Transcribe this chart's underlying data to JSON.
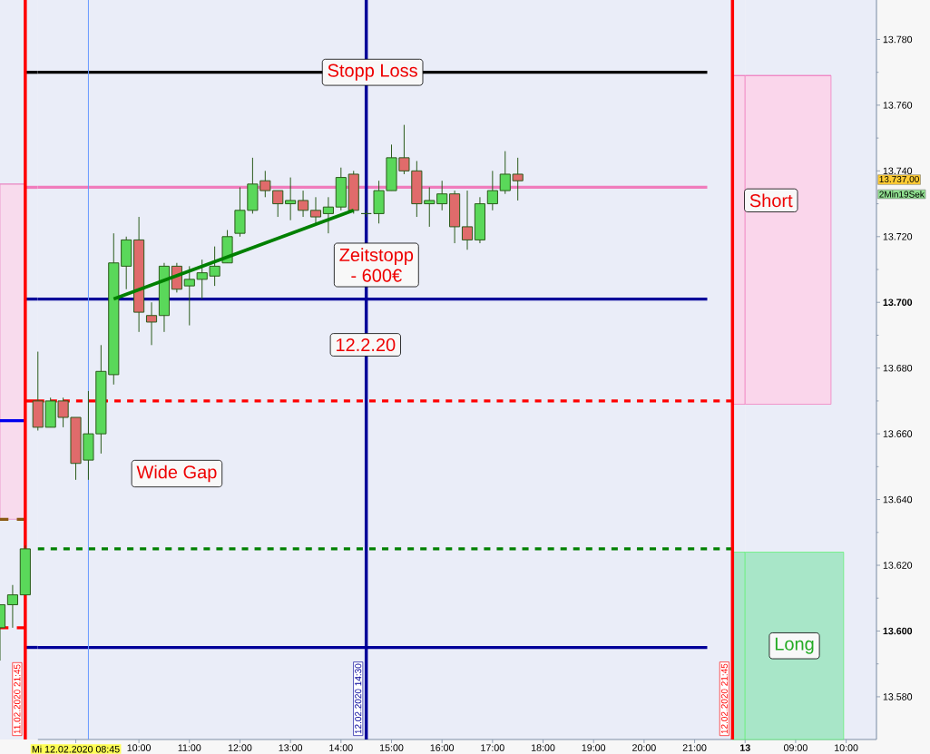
{
  "chart_data": [
    {
      "type": "candlestick",
      "categories": [
        null,
        null,
        null,
        null
      ],
      "ohlc": [
        [
          13601,
          13608,
          13591,
          13608
        ],
        [
          13608,
          13614,
          13601,
          13611
        ],
        [
          13611,
          13626,
          13611,
          13625
        ],
        null
      ],
      "color": "#2a5a1a",
      "colors": [
        "#5ad85a",
        "#5ad85a",
        "#5ad85a",
        null
      ],
      "ylim": [
        13567,
        13792
      ],
      "tick_labels": false,
      "series": [
        {
          "type": "line",
          "color": "#e890c8",
          "values": [
            13736,
            13736,
            13736,
            null
          ],
          "lower": [
            13634,
            13634,
            13634,
            null
          ],
          "upper": [
            13736,
            13736,
            13736,
            null
          ]
        },
        {
          "type": "line",
          "color": "#0000ee",
          "values": [
            13664,
            13664,
            13664,
            null
          ]
        },
        {
          "type": "line",
          "color": "#8b5a14",
          "line_style": "dashed",
          "values": [
            13634,
            13634,
            13634,
            null
          ]
        },
        {
          "type": "line",
          "color": "#ff0000",
          "line_style": "dashed",
          "values": [
            13601,
            13601,
            13601,
            null
          ]
        },
        {
          "type": "line",
          "color": "#000000",
          "values": [
            null,
            null,
            13770,
            13770
          ]
        },
        {
          "type": "line",
          "color": "#f07cbc",
          "values": [
            null,
            null,
            13735,
            13735
          ]
        },
        {
          "type": "line",
          "color": "#000099",
          "values": [
            null,
            null,
            13701,
            13701
          ]
        },
        {
          "type": "line",
          "color": "#ff0000",
          "line_style": "dashed",
          "values": [
            null,
            null,
            13670,
            13670
          ]
        },
        {
          "type": "line",
          "color": "#000099",
          "values": [
            null,
            null,
            13595,
            13595
          ]
        }
      ],
      "annotations": [
        "11.02.2020 21:45"
      ]
    },
    {
      "type": "candlestick",
      "x": [
        "2020-02-12T08:00",
        "2020-02-12T08:15",
        "2020-02-12T08:30",
        "2020-02-12T08:45",
        "2020-02-12T09:00",
        "2020-02-12T09:15",
        "2020-02-12T09:30",
        "2020-02-12T09:45",
        "2020-02-12T10:00",
        "2020-02-12T10:15",
        "2020-02-12T10:30",
        "2020-02-12T10:45",
        "2020-02-12T11:00",
        "2020-02-12T11:15",
        "2020-02-12T11:30",
        "2020-02-12T11:45",
        "2020-02-12T12:00",
        "2020-02-12T12:15",
        "2020-02-12T12:30",
        "2020-02-12T12:45",
        "2020-02-12T13:00",
        "2020-02-12T13:15",
        "2020-02-12T13:30",
        "2020-02-12T13:45",
        "2020-02-12T14:00",
        "2020-02-12T14:15",
        "2020-02-12T14:30",
        "2020-02-12T14:45",
        "2020-02-12T15:00",
        "2020-02-12T15:15",
        "2020-02-12T15:30",
        "2020-02-12T15:45",
        "2020-02-12T16:00",
        "2020-02-12T16:15",
        "2020-02-12T16:30",
        "2020-02-12T16:45",
        "2020-02-12T17:00",
        "2020-02-12T17:15",
        "2020-02-12T17:30"
      ],
      "ohlc": [
        [
          13670,
          13685,
          13661,
          13662
        ],
        [
          13662,
          13671,
          13662,
          13670
        ],
        [
          13670,
          13671,
          13662,
          13665
        ],
        [
          13665,
          13665,
          13646,
          13651
        ],
        [
          13652,
          13673,
          13646,
          13660
        ],
        [
          13660,
          13687,
          13654,
          13679
        ],
        [
          13678,
          13721,
          13675,
          13712
        ],
        [
          13711,
          13720,
          13704,
          13719
        ],
        [
          13719,
          13726,
          13691,
          13697
        ],
        [
          13696,
          13700,
          13687,
          13694
        ],
        [
          13696,
          13712,
          13691,
          13711
        ],
        [
          13711,
          13712,
          13703,
          13704
        ],
        [
          13705,
          13711,
          13693,
          13707
        ],
        [
          13707,
          13713,
          13701,
          13709
        ],
        [
          13708,
          13717,
          13705,
          13711
        ],
        [
          13712,
          13722,
          13712,
          13720
        ],
        [
          13721,
          13735,
          13720,
          13728
        ],
        [
          13728,
          13744,
          13727,
          13736
        ],
        [
          13737,
          13740,
          13732,
          13734
        ],
        [
          13734,
          13734,
          13726,
          13730
        ],
        [
          13730,
          13738,
          13725,
          13731
        ],
        [
          13731,
          13734,
          13726,
          13728
        ],
        [
          13728,
          13732,
          13724,
          13726
        ],
        [
          13727,
          13732,
          13721,
          13729
        ],
        [
          13729,
          13741,
          13728,
          13738
        ],
        [
          13739,
          13740,
          13727,
          13728
        ],
        [
          13727,
          13728,
          13726,
          13727
        ],
        [
          13727,
          13737,
          13724,
          13734
        ],
        [
          13734,
          13748,
          13734,
          13744
        ],
        [
          13744,
          13754,
          13739,
          13740
        ],
        [
          13740,
          13743,
          13726,
          13730
        ],
        [
          13730,
          13735,
          13723,
          13731
        ],
        [
          13730,
          13737,
          13728,
          13733
        ],
        [
          13733,
          13734,
          13718,
          13723
        ],
        [
          13723,
          13734,
          13716,
          13719
        ],
        [
          13719,
          13732,
          13718,
          13730
        ],
        [
          13730,
          13740,
          13728,
          13734
        ],
        [
          13734,
          13746,
          13733,
          13739
        ],
        [
          13739,
          13744,
          13731,
          13737
        ]
      ],
      "color": "#2a5a1a",
      "colors": [
        "#e06b6b",
        "#5ad85a",
        "#e06b6b",
        "#e06b6b",
        "#5ad85a",
        "#5ad85a",
        "#5ad85a",
        "#5ad85a",
        "#e06b6b",
        "#e06b6b",
        "#5ad85a",
        "#e06b6b",
        "#5ad85a",
        "#5ad85a",
        "#5ad85a",
        "#5ad85a",
        "#5ad85a",
        "#5ad85a",
        "#e06b6b",
        "#e06b6b",
        "#5ad85a",
        "#e06b6b",
        "#e06b6b",
        "#5ad85a",
        "#5ad85a",
        "#e06b6b",
        "#2a5a1a",
        "#5ad85a",
        "#5ad85a",
        "#e06b6b",
        "#e06b6b",
        "#5ad85a",
        "#5ad85a",
        "#e06b6b",
        "#e06b6b",
        "#5ad85a",
        "#5ad85a",
        "#5ad85a",
        "#e06b6b"
      ],
      "xlim": [
        "2020-02-12T08:00",
        "2020-02-12T22:00"
      ],
      "ylim": [
        13567,
        13792
      ],
      "tick_labels": "x",
      "xticks": [
        {
          "value": "2020-02-12T08:45",
          "label": "Mi 12.02.2020 08:45"
        },
        {
          "value": "2020-02-12T10:00",
          "label": "10:00"
        },
        {
          "value": "2020-02-12T11:00",
          "label": "11:00"
        },
        {
          "value": "2020-02-12T12:00",
          "label": "12:00"
        },
        {
          "value": "2020-02-12T13:00",
          "label": "13:00"
        },
        {
          "value": "2020-02-12T14:00",
          "label": "14:00"
        },
        {
          "value": "2020-02-12T15:00",
          "label": "15:00"
        },
        {
          "value": "2020-02-12T16:00",
          "label": "16:00"
        },
        {
          "value": "2020-02-12T17:00",
          "label": "17:00"
        },
        {
          "value": "2020-02-12T18:00",
          "label": "18:00"
        },
        {
          "value": "2020-02-12T19:00",
          "label": "19:00"
        },
        {
          "value": "2020-02-12T20:00",
          "label": "20:00"
        },
        {
          "value": "2020-02-12T21:00",
          "label": "21:00"
        }
      ],
      "ref_lines": [
        {
          "axis": "x",
          "value": "2020-02-12T09:00",
          "color": "#6699ff"
        },
        {
          "axis": "x",
          "value": "2020-02-12T14:30",
          "label": "12.02.2020 14:30",
          "color": "#000099"
        },
        {
          "axis": "x",
          "value": "2020-02-12T21:45",
          "label": "12.02.2020 21:45",
          "color": "#ff0000"
        }
      ],
      "series": [
        {
          "type": "line",
          "color": "#f080c0",
          "x": [
            "2020-02-12T21:45",
            "2020-02-12T22:00"
          ],
          "values": [
            13769,
            13769
          ],
          "lower": [
            13669,
            13669
          ],
          "upper": [
            13769,
            13769
          ]
        },
        {
          "type": "area",
          "color": "#a8e6c8",
          "x": [
            "2020-02-12T21:45",
            "2020-02-12T22:00"
          ],
          "values": [
            13624,
            13624
          ]
        },
        {
          "type": "line",
          "name": "Stopp Loss",
          "color": "#000000",
          "x": [
            "2020-02-12T08:00",
            "2020-02-12T21:15"
          ],
          "values": [
            13770,
            13770
          ]
        },
        {
          "type": "line",
          "color": "#f07cbc",
          "x": [
            "2020-02-12T08:00",
            "2020-02-12T21:15"
          ],
          "values": [
            13735,
            13735
          ]
        },
        {
          "type": "line",
          "color": "#000099",
          "x": [
            "2020-02-12T08:00",
            "2020-02-12T21:15"
          ],
          "values": [
            13701,
            13701
          ]
        },
        {
          "type": "line",
          "color": "#ff0000",
          "line_style": "dashed",
          "x": [
            "2020-02-12T08:00",
            "2020-02-12T21:45"
          ],
          "values": [
            13670,
            13670
          ]
        },
        {
          "type": "line",
          "color": "#008000",
          "line_style": "dashed",
          "x": [
            "2020-02-12T08:00",
            "2020-02-12T21:45"
          ],
          "values": [
            13625,
            13625
          ]
        },
        {
          "type": "line",
          "color": "#000099",
          "x": [
            "2020-02-12T08:00",
            "2020-02-12T21:15"
          ],
          "values": [
            13595,
            13595
          ]
        },
        {
          "type": "line",
          "color": "#008000",
          "x": [
            "2020-02-12T09:30",
            "2020-02-12T14:15"
          ],
          "values": [
            13701,
            13728
          ]
        }
      ],
      "annotations": [
        "Wide Gap",
        "Zeitstopp - 600€",
        "12.2.20"
      ]
    },
    {
      "type": "area",
      "xlim": [
        "2020-02-13T08:00",
        "2020-02-13T10:36"
      ],
      "ylim": [
        13567,
        13792
      ],
      "xticks": [
        {
          "value": "2020-02-13T08:00",
          "label": "**13**"
        },
        {
          "value": "2020-02-13T09:00",
          "label": "09:00"
        },
        {
          "value": "2020-02-13T10:00",
          "label": "10:00"
        }
      ],
      "yticks": [
        {
          "value": 13580,
          "label": "13.580"
        },
        {
          "value": 13600,
          "label": "**13.600**"
        },
        {
          "value": 13620,
          "label": "13.620"
        },
        {
          "value": 13640,
          "label": "13.640"
        },
        {
          "value": 13660,
          "label": "13.660"
        },
        {
          "value": 13680,
          "label": "13.680"
        },
        {
          "value": 13700,
          "label": "**13.700**"
        },
        {
          "value": 13720,
          "label": "13.720"
        },
        {
          "value": 13740,
          "label": "13.740"
        },
        {
          "value": 13760,
          "label": "13.760"
        },
        {
          "value": 13780,
          "label": "13.780"
        }
      ],
      "series": [
        {
          "type": "line",
          "color": "#f080c0",
          "x": [
            "2020-02-13T08:00",
            "2020-02-13T09:42"
          ],
          "values": [
            13769,
            13769
          ],
          "lower": [
            13669,
            13669
          ],
          "upper": [
            13769,
            13769
          ]
        },
        {
          "name": "Long",
          "color": "#a8e6c8",
          "x": [
            "2020-02-13T08:00",
            "2020-02-13T09:57"
          ],
          "values": [
            13624,
            13624
          ]
        }
      ],
      "annotations": [
        "13.737,00",
        "2Min19Sek",
        "Short"
      ]
    }
  ]
}
